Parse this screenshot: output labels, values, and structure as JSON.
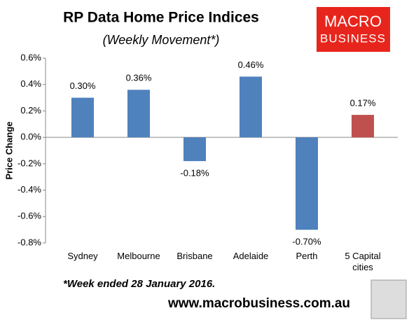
{
  "chart_data": {
    "type": "bar",
    "title": "RP Data Home Price Indices",
    "subtitle": "(Weekly Movement*)",
    "y_label": "Price Change",
    "footnote": "*Week ended 28 January 2016.",
    "website": "www.macrobusiness.com.au",
    "logo": [
      "MACRO",
      "BUSINESS"
    ],
    "categories": [
      "Sydney",
      "Melbourne",
      "Brisbane",
      "Adelaide",
      "Perth",
      "5 Capital cities"
    ],
    "values": [
      0.3,
      0.36,
      -0.18,
      0.46,
      -0.7,
      0.17
    ],
    "value_labels": [
      "0.30%",
      "0.36%",
      "-0.18%",
      "0.46%",
      "-0.70%",
      "0.17%"
    ],
    "colors": [
      "#4f81bd",
      "#4f81bd",
      "#4f81bd",
      "#4f81bd",
      "#4f81bd",
      "#c0504d"
    ],
    "ylim": [
      -0.8,
      0.6
    ],
    "yticks": [
      {
        "value": -0.8,
        "label": "-0.8%"
      },
      {
        "value": -0.6,
        "label": "-0.6%"
      },
      {
        "value": -0.4,
        "label": "-0.4%"
      },
      {
        "value": -0.2,
        "label": "-0.2%"
      },
      {
        "value": 0,
        "label": "0.0%"
      },
      {
        "value": 0.2,
        "label": "0.2%"
      },
      {
        "value": 0.4,
        "label": "0.4%"
      },
      {
        "value": 0.6,
        "label": "0.6%"
      }
    ],
    "grid": false
  }
}
